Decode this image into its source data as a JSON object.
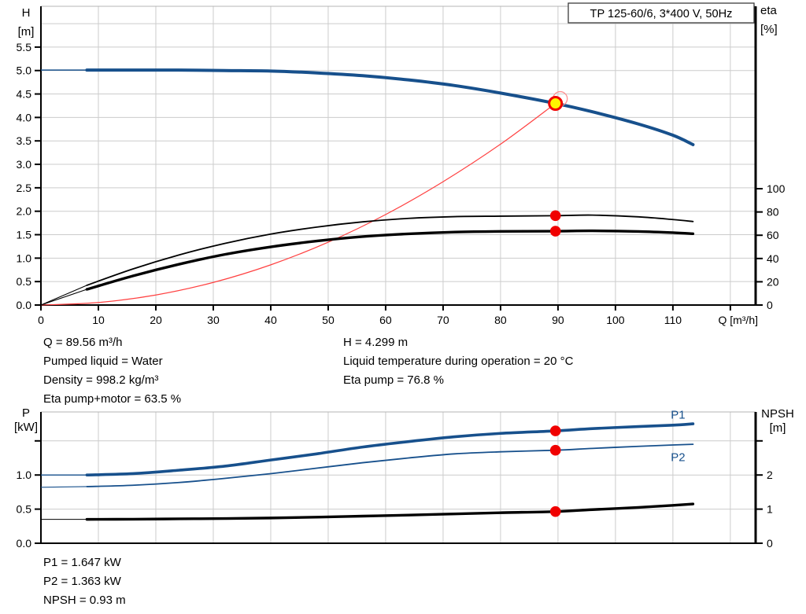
{
  "colors": {
    "curve_blue": "#17508c",
    "curve_black": "#000000",
    "curve_red": "#ff4040",
    "marker_red": "#f00000",
    "duty_yellow": "#fff500",
    "grid": "#cccccc",
    "axis": "#000000"
  },
  "info_top": {
    "col1": [
      "Q = 89.56 m³/h",
      "Pumped liquid = Water",
      "Density = 998.2 kg/m³",
      "Eta pump+motor = 63.5 %"
    ],
    "col2": [
      "H = 4.299 m",
      "Liquid temperature during operation = 20 °C",
      "Eta pump = 76.8 %"
    ]
  },
  "info_bottom": [
    "P1 = 1.647 kW",
    "P2 = 1.363 kW",
    "NPSH = 0.93 m"
  ],
  "chart_data": [
    {
      "type": "line",
      "title": "TP 125-60/6, 3*400 V, 50Hz",
      "xlabel": "Q [m³/h]",
      "xlim": [
        0,
        124.4
      ],
      "x_ticks": {
        "values": [
          0,
          10,
          20,
          30,
          40,
          50,
          60,
          70,
          80,
          90,
          100,
          110,
          120
        ],
        "labels": [
          "0",
          "10",
          "20",
          "30",
          "40",
          "50",
          "60",
          "70",
          "80",
          "90",
          "100",
          "110",
          ""
        ]
      },
      "x_grid": [
        10,
        20,
        30,
        40,
        50,
        60,
        70,
        80,
        90,
        100,
        110,
        120
      ],
      "left_axis": {
        "title_lines": [
          "H",
          "[m]"
        ],
        "lim": [
          0,
          6.37
        ],
        "ticks": {
          "values": [
            0,
            0.5,
            1,
            1.5,
            2,
            2.5,
            3,
            3.5,
            4,
            4.5,
            5,
            5.5
          ],
          "labels": [
            "0.0",
            "0.5",
            "1.0",
            "1.5",
            "2.0",
            "2.5",
            "3.0",
            "3.5",
            "4.0",
            "4.5",
            "5.0",
            "5.5"
          ]
        },
        "grid": [
          0.5,
          1,
          1.5,
          2,
          2.5,
          3,
          3.5,
          4,
          4.5,
          5,
          5.5,
          6
        ]
      },
      "right_axis": {
        "title_lines": [
          "eta",
          "[%]"
        ],
        "lim": [
          0,
          256.8
        ],
        "ticks": {
          "values": [
            0,
            20,
            40,
            60,
            80,
            100
          ],
          "labels": [
            "0",
            "20",
            "40",
            "60",
            "80",
            "100"
          ]
        }
      },
      "series": [
        {
          "name": "head-curve",
          "axis": "left",
          "color": "#17508c",
          "width": 4,
          "thin_until": 8,
          "thin_width": 1.4,
          "points": [
            [
              0,
              5.01
            ],
            [
              8,
              5.01
            ],
            [
              16,
              5.01
            ],
            [
              24,
              5.01
            ],
            [
              32,
              5.0
            ],
            [
              40,
              4.99
            ],
            [
              48,
              4.95
            ],
            [
              56,
              4.89
            ],
            [
              64,
              4.8
            ],
            [
              72,
              4.68
            ],
            [
              80,
              4.52
            ],
            [
              89.56,
              4.299
            ],
            [
              96,
              4.12
            ],
            [
              104,
              3.86
            ],
            [
              110,
              3.62
            ],
            [
              113.5,
              3.42
            ]
          ]
        },
        {
          "name": "system-curve",
          "axis": "left",
          "color": "#ff4040",
          "width": 1.2,
          "points": [
            [
              0,
              0
            ],
            [
              10,
              0.054
            ],
            [
              20,
              0.214
            ],
            [
              30,
              0.482
            ],
            [
              40,
              0.857
            ],
            [
              50,
              1.34
            ],
            [
              60,
              1.93
            ],
            [
              70,
              2.63
            ],
            [
              80,
              3.43
            ],
            [
              89.56,
              4.299
            ]
          ]
        },
        {
          "name": "eta-pump-curve",
          "axis": "right",
          "color": "#000000",
          "width": 1.8,
          "thin_until": 8,
          "thin_width": 1.1,
          "points": [
            [
              0,
              0
            ],
            [
              8,
              17
            ],
            [
              16,
              31
            ],
            [
              24,
              43
            ],
            [
              32,
              53
            ],
            [
              40,
              61
            ],
            [
              48,
              67
            ],
            [
              56,
              71.5
            ],
            [
              64,
              74.5
            ],
            [
              72,
              76
            ],
            [
              80,
              76.4
            ],
            [
              89.56,
              76.8
            ],
            [
              96,
              77.3
            ],
            [
              104,
              75.8
            ],
            [
              110,
              73.5
            ],
            [
              113.5,
              71.8
            ]
          ]
        },
        {
          "name": "eta-pump-motor-curve",
          "axis": "right",
          "color": "#000000",
          "width": 3.4,
          "thin_until": 8,
          "thin_width": 1.1,
          "points": [
            [
              0,
              0
            ],
            [
              8,
              13.5
            ],
            [
              16,
              25
            ],
            [
              24,
              35
            ],
            [
              32,
              43.5
            ],
            [
              40,
              50
            ],
            [
              48,
              55
            ],
            [
              56,
              58.8
            ],
            [
              64,
              61.2
            ],
            [
              72,
              62.7
            ],
            [
              80,
              63.3
            ],
            [
              89.56,
              63.5
            ],
            [
              96,
              63.8
            ],
            [
              104,
              63.2
            ],
            [
              110,
              62.2
            ],
            [
              113.5,
              61.3
            ]
          ]
        }
      ],
      "markers": [
        {
          "kind": "duty-point",
          "axis": "left",
          "x": 89.56,
          "y": 4.299
        },
        {
          "kind": "dot",
          "axis": "right",
          "x": 89.56,
          "y": 76.8
        },
        {
          "kind": "dot",
          "axis": "right",
          "x": 89.56,
          "y": 63.5
        }
      ]
    },
    {
      "type": "line",
      "title": "",
      "xlabel": "",
      "xlim": [
        0,
        124.4
      ],
      "x_ticks": null,
      "x_grid": [
        10,
        20,
        30,
        40,
        50,
        60,
        70,
        80,
        90,
        100,
        110,
        120
      ],
      "left_axis": {
        "title_lines": [
          "P",
          "[kW]"
        ],
        "lim": [
          0,
          1.924
        ],
        "ticks": {
          "values": [
            0,
            0.5,
            1,
            1.5
          ],
          "labels": [
            "0.0",
            "0.5",
            "1.0",
            ""
          ]
        },
        "grid": [
          0.5,
          1,
          1.5
        ]
      },
      "right_axis": {
        "title_lines": [
          "NPSH",
          "[m]"
        ],
        "lim": [
          0,
          3.848
        ],
        "ticks": {
          "values": [
            0,
            1,
            2,
            3
          ],
          "labels": [
            "0",
            "1",
            "2",
            ""
          ]
        }
      },
      "series": [
        {
          "name": "p1-curve",
          "axis": "left",
          "color": "#17508c",
          "width": 3.6,
          "thin_until": 8,
          "thin_width": 1.3,
          "label": {
            "text": "P1",
            "x": 110.9,
            "y": 1.885
          },
          "points": [
            [
              0,
              1.0
            ],
            [
              8,
              1.0
            ],
            [
              16,
              1.02
            ],
            [
              24,
              1.07
            ],
            [
              32,
              1.13
            ],
            [
              40,
              1.22
            ],
            [
              48,
              1.31
            ],
            [
              56,
              1.41
            ],
            [
              64,
              1.49
            ],
            [
              72,
              1.56
            ],
            [
              80,
              1.61
            ],
            [
              89.56,
              1.647
            ],
            [
              96,
              1.68
            ],
            [
              104,
              1.71
            ],
            [
              110,
              1.73
            ],
            [
              113.5,
              1.75
            ]
          ]
        },
        {
          "name": "p2-curve",
          "axis": "left",
          "color": "#17508c",
          "width": 1.8,
          "thin_until": 8,
          "thin_width": 1.1,
          "label": {
            "text": "P2",
            "x": 110.9,
            "y": 1.26
          },
          "points": [
            [
              0,
              0.82
            ],
            [
              8,
              0.83
            ],
            [
              16,
              0.85
            ],
            [
              24,
              0.89
            ],
            [
              32,
              0.95
            ],
            [
              40,
              1.02
            ],
            [
              48,
              1.1
            ],
            [
              56,
              1.18
            ],
            [
              64,
              1.25
            ],
            [
              72,
              1.31
            ],
            [
              80,
              1.34
            ],
            [
              89.56,
              1.363
            ],
            [
              96,
              1.39
            ],
            [
              104,
              1.42
            ],
            [
              110,
              1.44
            ],
            [
              113.5,
              1.45
            ]
          ]
        },
        {
          "name": "npsh-curve",
          "axis": "right",
          "color": "#000000",
          "width": 3.4,
          "thin_until": 8,
          "thin_width": 1.1,
          "points": [
            [
              0,
              0.7
            ],
            [
              8,
              0.7
            ],
            [
              16,
              0.705
            ],
            [
              24,
              0.715
            ],
            [
              32,
              0.725
            ],
            [
              40,
              0.74
            ],
            [
              48,
              0.765
            ],
            [
              56,
              0.795
            ],
            [
              64,
              0.825
            ],
            [
              72,
              0.86
            ],
            [
              80,
              0.895
            ],
            [
              89.56,
              0.93
            ],
            [
              96,
              0.985
            ],
            [
              104,
              1.05
            ],
            [
              110,
              1.11
            ],
            [
              113.5,
              1.15
            ]
          ]
        }
      ],
      "markers": [
        {
          "kind": "dot",
          "axis": "left",
          "x": 89.56,
          "y": 1.647
        },
        {
          "kind": "dot",
          "axis": "left",
          "x": 89.56,
          "y": 1.363
        },
        {
          "kind": "dot",
          "axis": "right",
          "x": 89.56,
          "y": 0.93
        }
      ]
    }
  ]
}
